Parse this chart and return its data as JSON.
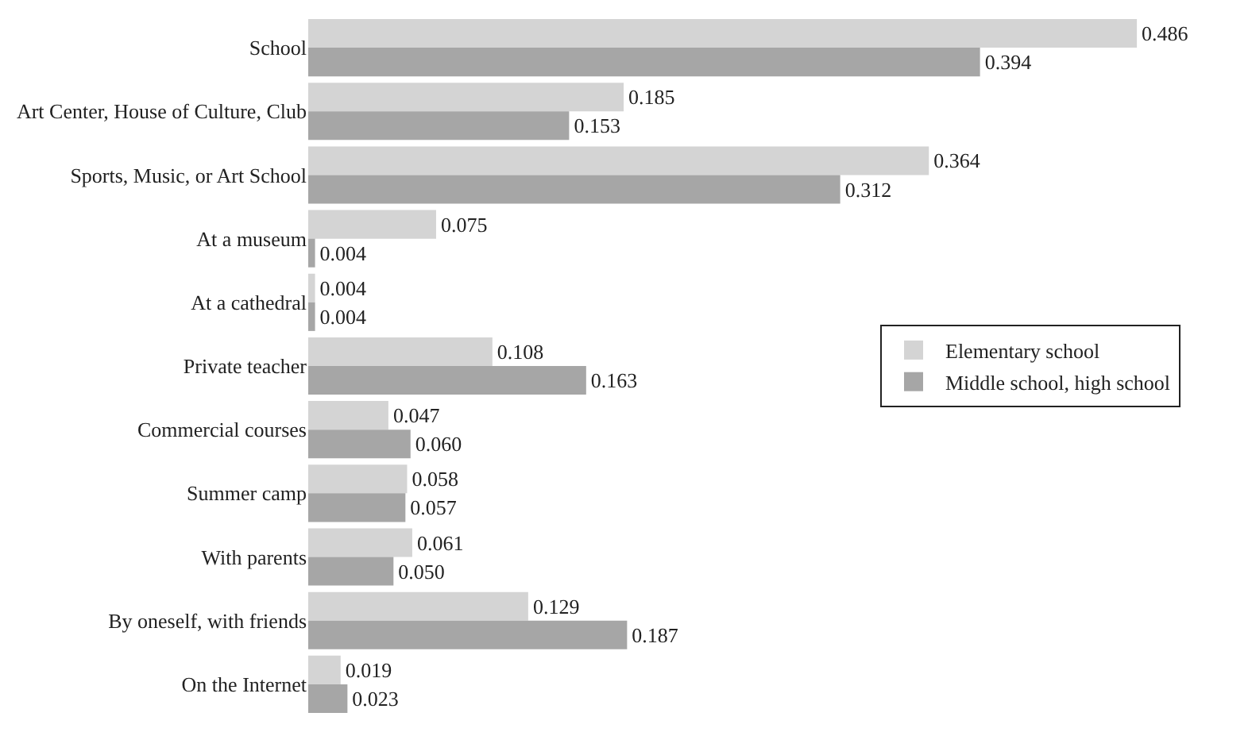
{
  "chart_data": {
    "type": "bar",
    "orientation": "horizontal",
    "categories": [
      "School",
      "Art Center, House of Culture, Club",
      "Sports, Music, or Art School",
      "At a museum",
      "At a cathedral",
      "Private teacher",
      "Commercial courses",
      "Summer camp",
      "With parents",
      "By oneself, with friends",
      "On the Internet"
    ],
    "series": [
      {
        "name": "Elementary school",
        "color": "#d4d4d4",
        "values": [
          0.486,
          0.185,
          0.364,
          0.075,
          0.004,
          0.108,
          0.047,
          0.058,
          0.061,
          0.129,
          0.019
        ],
        "value_labels": [
          "0.486",
          "0.185",
          "0.364",
          "0.075",
          "0.004",
          "0.108",
          "0.047",
          "0.058",
          "0.061",
          "0.129",
          "0.019"
        ]
      },
      {
        "name": "Middle school, high school",
        "color": "#a6a6a6",
        "values": [
          0.394,
          0.153,
          0.312,
          0.004,
          0.004,
          0.163,
          0.06,
          0.057,
          0.05,
          0.187,
          0.023
        ],
        "value_labels": [
          "0.394",
          "0.153",
          "0.312",
          "0.004",
          "0.004",
          "0.163",
          "0.060",
          "0.057",
          "0.050",
          "0.187",
          "0.023"
        ]
      }
    ],
    "legend": "right"
  }
}
